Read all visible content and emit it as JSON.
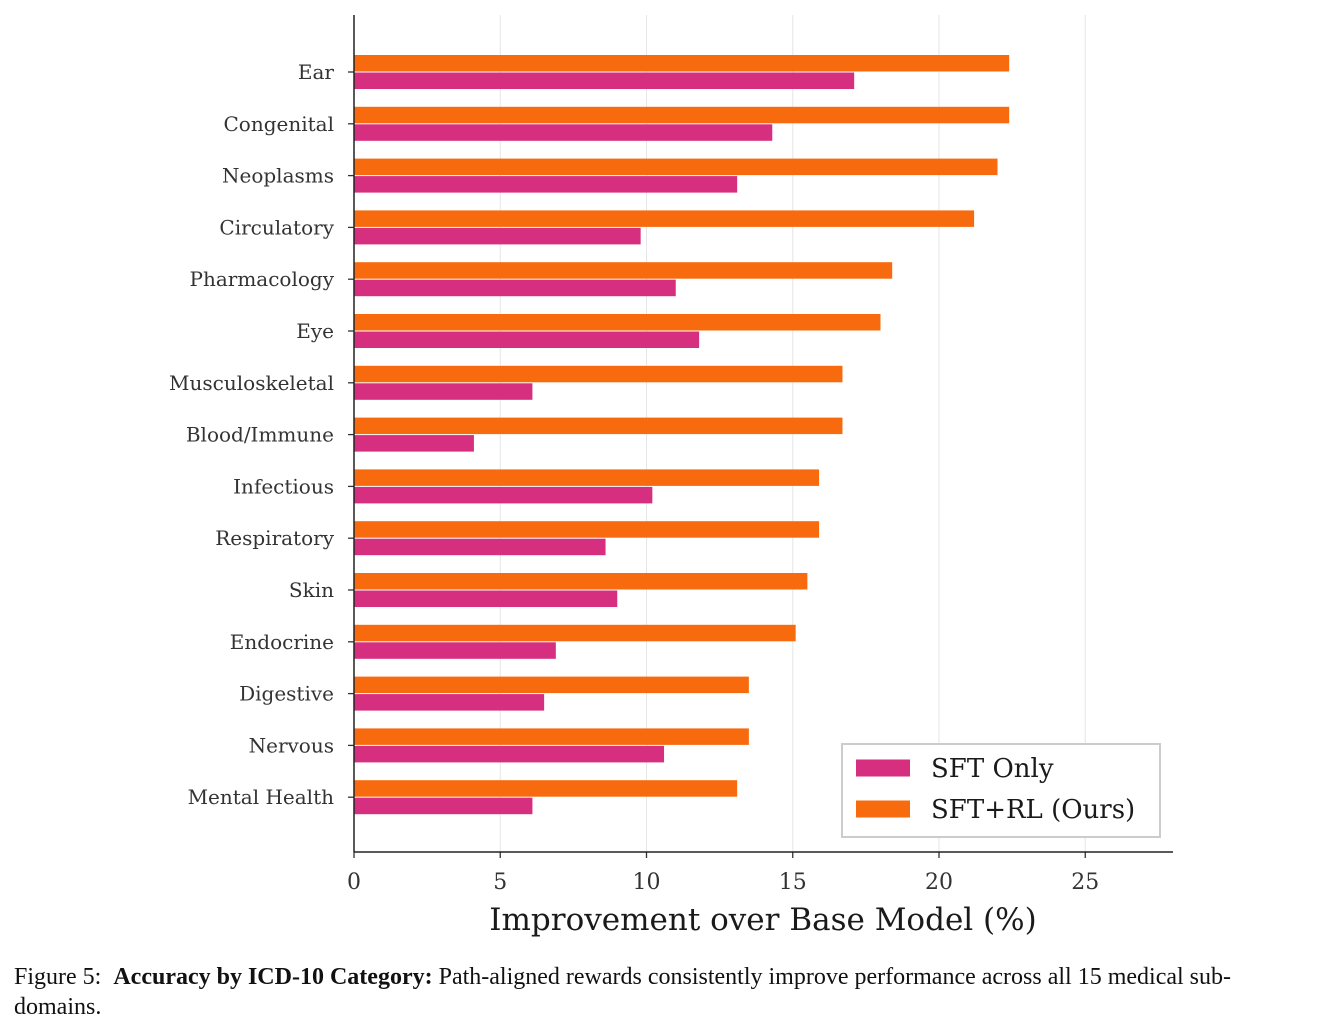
{
  "chart_data": {
    "type": "bar",
    "orientation": "horizontal",
    "categories": [
      "Ear",
      "Congenital",
      "Neoplasms",
      "Circulatory",
      "Pharmacology",
      "Eye",
      "Musculoskeletal",
      "Blood/Immune",
      "Infectious",
      "Respiratory",
      "Skin",
      "Endocrine",
      "Digestive",
      "Nervous",
      "Mental Health"
    ],
    "series": [
      {
        "name": "SFT Only",
        "color": "#d62f80",
        "values": [
          17.1,
          14.3,
          13.1,
          9.8,
          11.0,
          11.8,
          6.1,
          4.1,
          10.2,
          8.6,
          9.0,
          6.9,
          6.5,
          10.6,
          6.1
        ]
      },
      {
        "name": "SFT+RL (Ours)",
        "color": "#f76b0e",
        "values": [
          22.4,
          22.4,
          22.0,
          21.2,
          18.4,
          18.0,
          16.7,
          16.7,
          15.9,
          15.9,
          15.5,
          15.1,
          13.5,
          13.5,
          13.1
        ]
      }
    ],
    "xlabel": "Improvement over Base Model (%)",
    "ylabel": "",
    "xlim": [
      0,
      28
    ],
    "xticks": [
      0,
      5,
      10,
      15,
      20,
      25
    ],
    "grid": "vertical",
    "legend_position": "lower-right"
  },
  "caption": {
    "prefix": "Figure 5:",
    "bold": "Accuracy by ICD-10 Category:",
    "text": "Path-aligned rewards consistently improve performance across all 15 medical sub-domains."
  }
}
